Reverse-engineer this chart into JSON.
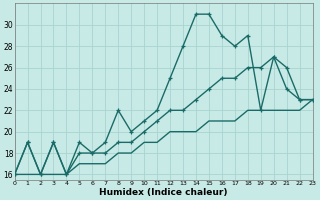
{
  "xlabel": "Humidex (Indice chaleur)",
  "bg_color": "#c8eae6",
  "grid_color": "#a8d4d0",
  "line_color": "#1a6b68",
  "xlim": [
    0,
    23
  ],
  "ylim": [
    15.5,
    32.0
  ],
  "yticks": [
    16,
    18,
    20,
    22,
    24,
    26,
    28,
    30
  ],
  "xticks": [
    0,
    1,
    2,
    3,
    4,
    5,
    6,
    7,
    8,
    9,
    10,
    11,
    12,
    13,
    14,
    15,
    16,
    17,
    18,
    19,
    20,
    21,
    22,
    23
  ],
  "line1_x": [
    0,
    1,
    2,
    3,
    4,
    5,
    6,
    7,
    8,
    9,
    10,
    11,
    12,
    13,
    14,
    15,
    16,
    17,
    18,
    19,
    20,
    21,
    22,
    23
  ],
  "line1_y": [
    16,
    19,
    16,
    19,
    16,
    19,
    18,
    19,
    22,
    20,
    21,
    22,
    25,
    28,
    31,
    31,
    29,
    28,
    29,
    22,
    27,
    24,
    23,
    23
  ],
  "line2_x": [
    0,
    1,
    2,
    3,
    4,
    5,
    6,
    7,
    8,
    9,
    10,
    11,
    12,
    13,
    14,
    15,
    16,
    17,
    18,
    19,
    20,
    21,
    22,
    23
  ],
  "line2_y": [
    16,
    19,
    16,
    19,
    16,
    18,
    18,
    18,
    19,
    19,
    20,
    21,
    22,
    22,
    23,
    24,
    25,
    25,
    26,
    26,
    27,
    26,
    23,
    23
  ],
  "line3_x": [
    0,
    1,
    2,
    3,
    4,
    5,
    6,
    7,
    8,
    9,
    10,
    11,
    12,
    13,
    14,
    15,
    16,
    17,
    18,
    19,
    20,
    21,
    22,
    23
  ],
  "line3_y": [
    16,
    16,
    16,
    16,
    16,
    17,
    17,
    17,
    18,
    18,
    19,
    19,
    20,
    20,
    20,
    21,
    21,
    21,
    22,
    22,
    22,
    22,
    22,
    23
  ]
}
